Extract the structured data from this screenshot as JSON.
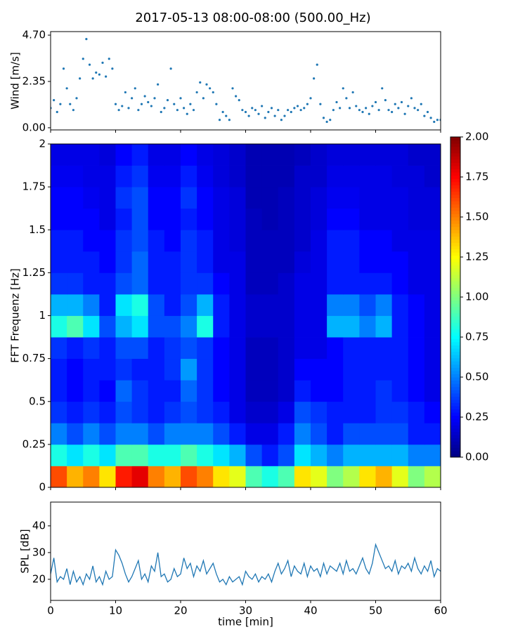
{
  "chart_data": [
    {
      "type": "scatter",
      "title": "2017-05-13 08:00-08:00 (500.00_Hz)",
      "ylabel": "Wind [m/s]",
      "color": "#1f77b4",
      "xlim": [
        0,
        60
      ],
      "xticks": [
        0,
        10,
        20,
        30,
        40,
        50,
        60
      ],
      "ylim": [
        -0.11,
        4.88
      ],
      "yticks": [
        {
          "value": 0,
          "label": "0.00"
        },
        {
          "value": 2.35,
          "label": "2.35"
        },
        {
          "value": 4.7,
          "label": "4.70"
        }
      ],
      "x": [
        0,
        0.5,
        1,
        1.5,
        2,
        2.5,
        3,
        3.5,
        4,
        4.5,
        5,
        5.5,
        6,
        6.5,
        7,
        7.5,
        8,
        8.5,
        9,
        9.5,
        10,
        10.5,
        11,
        11.5,
        12,
        12.5,
        13,
        13.5,
        14,
        14.5,
        15,
        15.5,
        16,
        16.5,
        17,
        17.5,
        18,
        18.5,
        19,
        19.5,
        20,
        20.5,
        21,
        21.5,
        22,
        22.5,
        23,
        23.5,
        24,
        24.5,
        25,
        25.5,
        26,
        26.5,
        27,
        27.5,
        28,
        28.5,
        29,
        29.5,
        30,
        30.5,
        31,
        31.5,
        32,
        32.5,
        33,
        33.5,
        34,
        34.5,
        35,
        35.5,
        36,
        36.5,
        37,
        37.5,
        38,
        38.5,
        39,
        39.5,
        40,
        40.5,
        41,
        41.5,
        42,
        42.5,
        43,
        43.5,
        44,
        44.5,
        45,
        45.5,
        46,
        46.5,
        47,
        47.5,
        48,
        48.5,
        49,
        49.5,
        50,
        50.5,
        51,
        51.5,
        52,
        52.5,
        53,
        53.5,
        54,
        54.5,
        55,
        55.5,
        56,
        56.5,
        57,
        57.5,
        58,
        58.5,
        59,
        59.5,
        60
      ],
      "y": [
        1.0,
        1.4,
        0.8,
        1.2,
        3.0,
        2.0,
        1.2,
        0.9,
        1.5,
        2.5,
        3.5,
        4.5,
        3.2,
        2.5,
        2.8,
        2.7,
        3.3,
        2.6,
        3.5,
        3.0,
        1.2,
        0.9,
        1.1,
        1.8,
        1.0,
        1.5,
        2.0,
        0.9,
        1.2,
        1.6,
        1.3,
        1.1,
        1.5,
        2.2,
        0.8,
        1.0,
        1.4,
        3.0,
        1.2,
        0.9,
        1.5,
        1.0,
        0.7,
        1.2,
        0.9,
        1.8,
        2.3,
        1.5,
        2.2,
        2.0,
        1.8,
        1.2,
        0.4,
        0.8,
        0.6,
        0.4,
        2.0,
        1.6,
        1.4,
        0.9,
        0.8,
        0.6,
        1.0,
        0.9,
        0.7,
        1.1,
        0.5,
        0.8,
        1.0,
        0.6,
        0.9,
        0.4,
        0.6,
        0.9,
        0.8,
        1.0,
        1.1,
        0.9,
        1.0,
        1.2,
        1.5,
        2.5,
        3.2,
        1.2,
        0.5,
        0.3,
        0.4,
        0.9,
        1.3,
        1.0,
        2.0,
        1.5,
        1.0,
        1.8,
        1.1,
        0.9,
        0.8,
        1.0,
        0.7,
        1.1,
        1.3,
        0.9,
        2.0,
        1.4,
        0.9,
        0.8,
        1.2,
        1.0,
        1.3,
        0.7,
        1.1,
        1.5,
        1.0,
        0.9,
        1.2,
        0.6,
        0.8,
        0.5,
        0.3,
        0.4,
        0.4
      ]
    },
    {
      "type": "heatmap",
      "ylabel": "FFT Frequenz [Hz]",
      "colormap": "jet",
      "xlim": [
        0,
        60
      ],
      "xticks": [
        0,
        10,
        20,
        30,
        40,
        50,
        60
      ],
      "ylim": [
        0,
        2
      ],
      "yticks": [
        0,
        0.25,
        0.5,
        0.75,
        1,
        1.25,
        1.5,
        1.75,
        2
      ],
      "clim": [
        0,
        2
      ],
      "cticks": [
        {
          "value": 0,
          "label": "0.00"
        },
        {
          "value": 0.25,
          "label": "0.25"
        },
        {
          "value": 0.5,
          "label": "0.50"
        },
        {
          "value": 0.75,
          "label": "0.75"
        },
        {
          "value": 1,
          "label": "1.00"
        },
        {
          "value": 1.25,
          "label": "1.25"
        },
        {
          "value": 1.5,
          "label": "1.50"
        },
        {
          "value": 1.75,
          "label": "1.75"
        },
        {
          "value": 2,
          "label": "2.00"
        }
      ],
      "x_bins": [
        0,
        2.5,
        5,
        7.5,
        10,
        12.5,
        15,
        17.5,
        20,
        22.5,
        25,
        27.5,
        30,
        32.5,
        35,
        37.5,
        40,
        42.5,
        45,
        47.5,
        50,
        52.5,
        55,
        57.5,
        60
      ],
      "y_bins": [
        0,
        0.125,
        0.25,
        0.375,
        0.5,
        0.625,
        0.75,
        0.875,
        1,
        1.125,
        1.25,
        1.375,
        1.5,
        1.625,
        1.75,
        1.875,
        2
      ],
      "values": [
        [
          1.6,
          1.4,
          1.5,
          1.3,
          1.7,
          1.8,
          1.5,
          1.4,
          1.6,
          1.5,
          1.3,
          1.2,
          0.9,
          0.8,
          0.9,
          1.3,
          1.2,
          1.0,
          1.1,
          1.3,
          1.4,
          1.2,
          1.0,
          1.1
        ],
        [
          0.8,
          0.7,
          0.8,
          0.7,
          0.9,
          0.9,
          0.8,
          0.8,
          0.9,
          0.8,
          0.7,
          0.6,
          0.4,
          0.3,
          0.4,
          0.7,
          0.6,
          0.5,
          0.6,
          0.6,
          0.6,
          0.6,
          0.5,
          0.5
        ],
        [
          0.5,
          0.4,
          0.5,
          0.4,
          0.5,
          0.5,
          0.4,
          0.5,
          0.5,
          0.5,
          0.4,
          0.3,
          0.2,
          0.2,
          0.3,
          0.5,
          0.4,
          0.3,
          0.4,
          0.4,
          0.4,
          0.4,
          0.3,
          0.3
        ],
        [
          0.35,
          0.3,
          0.35,
          0.3,
          0.4,
          0.35,
          0.3,
          0.35,
          0.4,
          0.35,
          0.3,
          0.2,
          0.15,
          0.15,
          0.2,
          0.4,
          0.35,
          0.3,
          0.3,
          0.3,
          0.35,
          0.35,
          0.3,
          0.25
        ],
        [
          0.3,
          0.25,
          0.3,
          0.25,
          0.45,
          0.35,
          0.3,
          0.3,
          0.45,
          0.35,
          0.25,
          0.2,
          0.12,
          0.12,
          0.15,
          0.3,
          0.25,
          0.25,
          0.3,
          0.3,
          0.35,
          0.3,
          0.25,
          0.2
        ],
        [
          0.3,
          0.25,
          0.3,
          0.3,
          0.35,
          0.3,
          0.3,
          0.35,
          0.55,
          0.35,
          0.25,
          0.2,
          0.12,
          0.12,
          0.15,
          0.25,
          0.25,
          0.25,
          0.3,
          0.3,
          0.3,
          0.3,
          0.25,
          0.2
        ],
        [
          0.35,
          0.3,
          0.35,
          0.3,
          0.4,
          0.4,
          0.3,
          0.35,
          0.4,
          0.35,
          0.25,
          0.2,
          0.12,
          0.12,
          0.15,
          0.2,
          0.2,
          0.25,
          0.3,
          0.3,
          0.3,
          0.3,
          0.25,
          0.2
        ],
        [
          0.8,
          0.9,
          0.7,
          0.4,
          0.6,
          0.7,
          0.4,
          0.4,
          0.5,
          0.8,
          0.3,
          0.2,
          0.15,
          0.15,
          0.15,
          0.2,
          0.2,
          0.6,
          0.6,
          0.5,
          0.6,
          0.3,
          0.25,
          0.2
        ],
        [
          0.6,
          0.6,
          0.5,
          0.3,
          0.7,
          0.8,
          0.4,
          0.3,
          0.4,
          0.6,
          0.3,
          0.2,
          0.15,
          0.15,
          0.15,
          0.2,
          0.2,
          0.5,
          0.5,
          0.4,
          0.5,
          0.3,
          0.25,
          0.2
        ],
        [
          0.35,
          0.35,
          0.3,
          0.3,
          0.4,
          0.45,
          0.3,
          0.3,
          0.35,
          0.35,
          0.25,
          0.2,
          0.12,
          0.12,
          0.15,
          0.2,
          0.2,
          0.3,
          0.3,
          0.3,
          0.3,
          0.25,
          0.2,
          0.2
        ],
        [
          0.3,
          0.3,
          0.3,
          0.25,
          0.35,
          0.45,
          0.3,
          0.3,
          0.35,
          0.3,
          0.2,
          0.2,
          0.12,
          0.12,
          0.12,
          0.18,
          0.2,
          0.3,
          0.3,
          0.25,
          0.25,
          0.25,
          0.2,
          0.2
        ],
        [
          0.3,
          0.3,
          0.25,
          0.25,
          0.35,
          0.4,
          0.3,
          0.25,
          0.35,
          0.3,
          0.2,
          0.18,
          0.12,
          0.12,
          0.12,
          0.15,
          0.2,
          0.3,
          0.3,
          0.25,
          0.25,
          0.2,
          0.2,
          0.2
        ],
        [
          0.25,
          0.25,
          0.25,
          0.2,
          0.3,
          0.4,
          0.25,
          0.25,
          0.3,
          0.25,
          0.2,
          0.18,
          0.12,
          0.1,
          0.12,
          0.15,
          0.18,
          0.25,
          0.25,
          0.2,
          0.2,
          0.2,
          0.18,
          0.18
        ],
        [
          0.25,
          0.25,
          0.22,
          0.2,
          0.35,
          0.4,
          0.25,
          0.25,
          0.35,
          0.25,
          0.2,
          0.18,
          0.1,
          0.1,
          0.12,
          0.15,
          0.18,
          0.22,
          0.22,
          0.2,
          0.2,
          0.2,
          0.18,
          0.18
        ],
        [
          0.22,
          0.22,
          0.2,
          0.2,
          0.3,
          0.35,
          0.22,
          0.22,
          0.3,
          0.22,
          0.18,
          0.15,
          0.1,
          0.1,
          0.1,
          0.15,
          0.15,
          0.2,
          0.2,
          0.2,
          0.2,
          0.18,
          0.18,
          0.15
        ],
        [
          0.2,
          0.2,
          0.2,
          0.18,
          0.25,
          0.3,
          0.2,
          0.2,
          0.25,
          0.2,
          0.18,
          0.15,
          0.1,
          0.1,
          0.1,
          0.12,
          0.15,
          0.18,
          0.18,
          0.18,
          0.18,
          0.18,
          0.15,
          0.15
        ]
      ]
    },
    {
      "type": "line",
      "ylabel": "SPL [dB]",
      "xlabel": "time [min]",
      "color": "#1f77b4",
      "xlim": [
        0,
        60
      ],
      "xticks": [
        0,
        10,
        20,
        30,
        40,
        50,
        60
      ],
      "ylim": [
        12.1,
        48.9
      ],
      "yticks": [
        20,
        30,
        40
      ],
      "x": [
        0,
        0.5,
        1,
        1.5,
        2,
        2.5,
        3,
        3.5,
        4,
        4.5,
        5,
        5.5,
        6,
        6.5,
        7,
        7.5,
        8,
        8.5,
        9,
        9.5,
        10,
        10.5,
        11,
        11.5,
        12,
        12.5,
        13,
        13.5,
        14,
        14.5,
        15,
        15.5,
        16,
        16.5,
        17,
        17.5,
        18,
        18.5,
        19,
        19.5,
        20,
        20.5,
        21,
        21.5,
        22,
        22.5,
        23,
        23.5,
        24,
        24.5,
        25,
        25.5,
        26,
        26.5,
        27,
        27.5,
        28,
        28.5,
        29,
        29.5,
        30,
        30.5,
        31,
        31.5,
        32,
        32.5,
        33,
        33.5,
        34,
        34.5,
        35,
        35.5,
        36,
        36.5,
        37,
        37.5,
        38,
        38.5,
        39,
        39.5,
        40,
        40.5,
        41,
        41.5,
        42,
        42.5,
        43,
        43.5,
        44,
        44.5,
        45,
        45.5,
        46,
        46.5,
        47,
        47.5,
        48,
        48.5,
        49,
        49.5,
        50,
        50.5,
        51,
        51.5,
        52,
        52.5,
        53,
        53.5,
        54,
        54.5,
        55,
        55.5,
        56,
        56.5,
        57,
        57.5,
        58,
        58.5,
        59,
        59.5,
        60
      ],
      "values": [
        22,
        28,
        19,
        21,
        20,
        24,
        18,
        23,
        19,
        21,
        18,
        22,
        20,
        25,
        19,
        21,
        18,
        23,
        20,
        21,
        31,
        29,
        26,
        22,
        19,
        21,
        24,
        27,
        20,
        22,
        19,
        25,
        23,
        30,
        21,
        22,
        19,
        20,
        24,
        21,
        22,
        28,
        24,
        26,
        21,
        25,
        23,
        27,
        22,
        24,
        26,
        22,
        19,
        20,
        18,
        21,
        19,
        20,
        21,
        18,
        23,
        21,
        20,
        22,
        19,
        21,
        20,
        22,
        19,
        23,
        26,
        22,
        24,
        27,
        21,
        25,
        23,
        22,
        26,
        21,
        25,
        23,
        24,
        21,
        26,
        22,
        25,
        24,
        23,
        26,
        22,
        27,
        23,
        24,
        22,
        25,
        28,
        24,
        22,
        26,
        33,
        30,
        27,
        24,
        25,
        23,
        27,
        22,
        25,
        24,
        26,
        23,
        28,
        24,
        22,
        25,
        23,
        27,
        21,
        24,
        23
      ]
    }
  ]
}
